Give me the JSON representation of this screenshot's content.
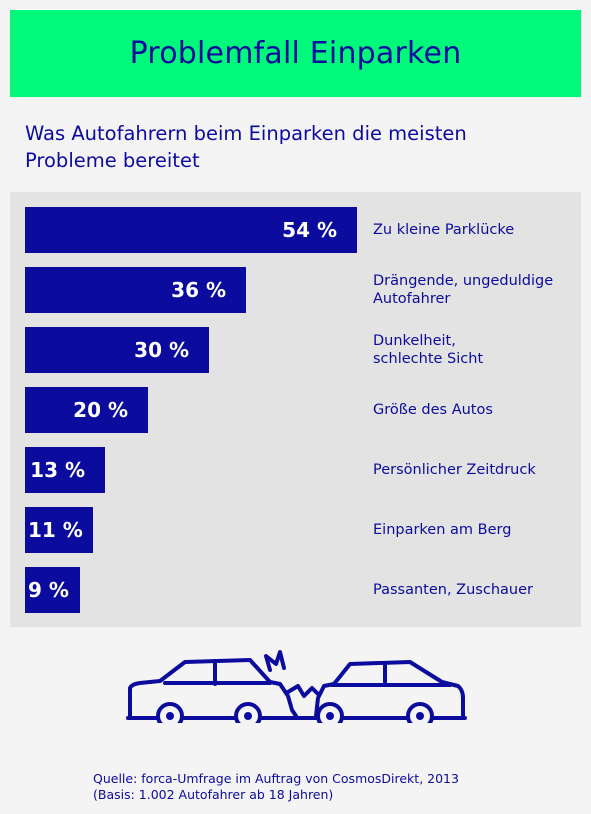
{
  "header": {
    "title": "Problemfall Einparken"
  },
  "subtitle_lines": [
    "Was Autofahrern beim Einparken die meisten",
    "Probleme bereitet"
  ],
  "chart_data": {
    "type": "bar",
    "orientation": "horizontal",
    "unit": "%",
    "categories": [
      "Zu kleine Parklücke",
      "Drängende, ungeduldige Autofahrer",
      "Dunkelheit, schlechte Sicht",
      "Größe des Autos",
      "Persönlicher Zeitdruck",
      "Einparken am Berg",
      "Passanten, Zuschauer"
    ],
    "category_lines": [
      [
        "Zu kleine Parklücke"
      ],
      [
        "Drängende, ungeduldige",
        "Autofahrer"
      ],
      [
        "Dunkelheit,",
        "schlechte Sicht"
      ],
      [
        "Größe des Autos"
      ],
      [
        "Persönlicher Zeitdruck"
      ],
      [
        "Einparken am Berg"
      ],
      [
        "Passanten, Zuschauer"
      ]
    ],
    "values": [
      54,
      36,
      30,
      20,
      13,
      11,
      9
    ],
    "value_labels": [
      "54 %",
      "36 %",
      "30 %",
      "20 %",
      "13 %",
      "11 %",
      "9 %"
    ],
    "xlim": [
      0,
      54
    ],
    "colors": {
      "bar": "#0b0b9e",
      "panel": "#e3e3e3",
      "header": "#00f97a"
    }
  },
  "illustration": {
    "icon": "car-crash-icon"
  },
  "source": {
    "line1": "Quelle: forca-Umfrage im Auftrag von CosmosDirekt, 2013",
    "line2": "(Basis: 1.002 Autofahrer ab 18 Jahren)"
  }
}
